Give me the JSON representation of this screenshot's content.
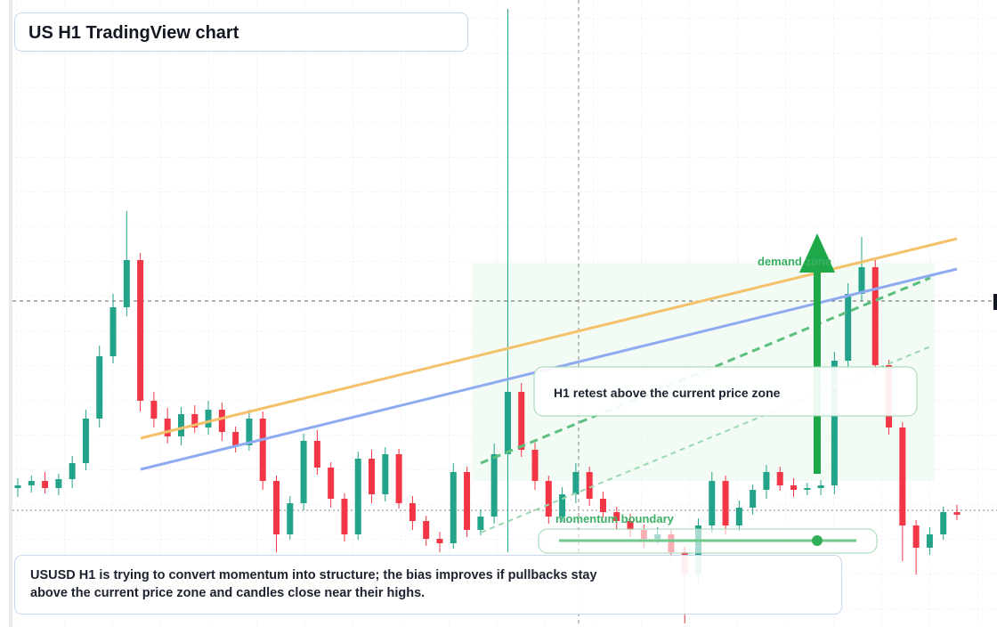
{
  "chart_data": {
    "type": "candlestick",
    "title": "US H1 TradingView chart",
    "annotations": [
      "demand zone",
      "H1 retest above the current price zone",
      "momentum boundary",
      "USUSD H1 is trying to convert momentum into structure; the bias improves if pullbacks stay above the current price zone and candles close near their highs."
    ],
    "ylim": [
      0,
      704
    ],
    "up_color": "#22a38a",
    "down_color": "#f23645",
    "open": [
      156,
      159,
      164,
      156,
      166,
      184,
      234,
      304,
      359,
      412,
      254,
      234,
      214,
      239,
      224,
      244,
      219,
      204,
      234,
      164,
      104,
      139,
      209,
      179,
      144,
      104,
      189,
      149,
      194,
      139,
      119,
      99,
      94,
      174,
      109,
      124,
      194,
      264,
      199,
      164,
      124,
      149,
      174,
      144,
      129,
      119,
      109,
      99,
      104,
      84,
      59,
      114,
      164,
      114,
      134,
      154,
      174,
      159,
      154,
      156,
      159,
      299,
      374,
      404,
      294,
      224,
      114,
      89,
      104,
      129
    ],
    "high": [
      167,
      170,
      174,
      172,
      192,
      244,
      316,
      374,
      467,
      420,
      264,
      246,
      247,
      249,
      254,
      252,
      225,
      244,
      242,
      170,
      147,
      217,
      221,
      185,
      150,
      197,
      199,
      202,
      200,
      147,
      125,
      107,
      184,
      180,
      132,
      206,
      694,
      274,
      207,
      170,
      157,
      184,
      180,
      152,
      135,
      127,
      115,
      112,
      110,
      90,
      122,
      174,
      170,
      142,
      160,
      182,
      180,
      167,
      162,
      165,
      309,
      386,
      438,
      412,
      300,
      230,
      120,
      112,
      135,
      137
    ],
    "low": [
      146,
      151,
      150,
      148,
      156,
      176,
      224,
      296,
      349,
      242,
      224,
      206,
      204,
      218,
      216,
      209,
      196,
      198,
      154,
      84,
      98,
      131,
      171,
      134,
      96,
      98,
      139,
      141,
      133,
      109,
      91,
      84,
      88,
      101,
      103,
      116,
      84,
      191,
      154,
      116,
      118,
      139,
      136,
      123,
      109,
      101,
      89,
      93,
      74,
      4,
      49,
      106,
      104,
      108,
      126,
      144,
      153,
      146,
      148,
      148,
      149,
      289,
      366,
      284,
      216,
      74,
      59,
      81,
      98,
      120
    ],
    "close": [
      159,
      164,
      156,
      166,
      184,
      234,
      304,
      359,
      412,
      254,
      234,
      214,
      239,
      224,
      244,
      219,
      204,
      234,
      164,
      104,
      139,
      209,
      179,
      144,
      104,
      189,
      149,
      194,
      139,
      119,
      99,
      94,
      174,
      109,
      124,
      194,
      264,
      199,
      164,
      124,
      149,
      174,
      144,
      129,
      119,
      109,
      99,
      104,
      84,
      59,
      114,
      164,
      114,
      134,
      154,
      174,
      159,
      154,
      156,
      159,
      299,
      374,
      404,
      294,
      224,
      114,
      89,
      104,
      129,
      126
    ]
  }
}
